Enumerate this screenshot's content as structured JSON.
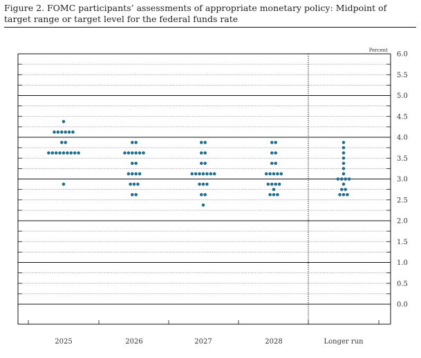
{
  "figure": {
    "title": "Figure 2. FOMC participants’ assessments of appropriate monetary policy: Midpoint of target range or target level for the federal funds rate"
  },
  "chart_data": {
    "type": "scatter",
    "title": "Figure 2. FOMC participants’ assessments of appropriate monetary policy: Midpoint of target range or target level for the federal funds rate",
    "ylabel": "Percent",
    "ylim": [
      0,
      6
    ],
    "yticks": [
      "6.0",
      "5.5",
      "5.0",
      "4.5",
      "4.0",
      "3.5",
      "3.0",
      "2.5",
      "2.0",
      "1.5",
      "1.0",
      "0.5",
      "0.0"
    ],
    "categories": [
      "2025",
      "2026",
      "2027",
      "2028",
      "Longer run"
    ],
    "dots": [
      [
        {
          "rate": 4.375,
          "count": 1
        },
        {
          "rate": 4.125,
          "count": 6
        },
        {
          "rate": 3.875,
          "count": 2
        },
        {
          "rate": 3.625,
          "count": 9
        },
        {
          "rate": 2.875,
          "count": 1
        }
      ],
      [
        {
          "rate": 3.875,
          "count": 2
        },
        {
          "rate": 3.625,
          "count": 6
        },
        {
          "rate": 3.375,
          "count": 2
        },
        {
          "rate": 3.125,
          "count": 4
        },
        {
          "rate": 2.875,
          "count": 3
        },
        {
          "rate": 2.625,
          "count": 2
        }
      ],
      [
        {
          "rate": 3.875,
          "count": 2
        },
        {
          "rate": 3.625,
          "count": 2
        },
        {
          "rate": 3.375,
          "count": 2
        },
        {
          "rate": 3.125,
          "count": 7
        },
        {
          "rate": 2.875,
          "count": 3
        },
        {
          "rate": 2.625,
          "count": 2
        },
        {
          "rate": 2.375,
          "count": 1
        }
      ],
      [
        {
          "rate": 3.875,
          "count": 2
        },
        {
          "rate": 3.625,
          "count": 2
        },
        {
          "rate": 3.375,
          "count": 2
        },
        {
          "rate": 3.125,
          "count": 5
        },
        {
          "rate": 2.875,
          "count": 4
        },
        {
          "rate": 2.75,
          "count": 1
        },
        {
          "rate": 2.625,
          "count": 3
        }
      ],
      [
        {
          "rate": 3.875,
          "count": 1
        },
        {
          "rate": 3.75,
          "count": 1
        },
        {
          "rate": 3.625,
          "count": 1
        },
        {
          "rate": 3.5,
          "count": 1
        },
        {
          "rate": 3.375,
          "count": 1
        },
        {
          "rate": 3.25,
          "count": 1
        },
        {
          "rate": 3.125,
          "count": 1
        },
        {
          "rate": 3.0,
          "count": 4
        },
        {
          "rate": 2.875,
          "count": 1
        },
        {
          "rate": 2.75,
          "count": 2
        },
        {
          "rate": 2.625,
          "count": 3
        }
      ]
    ],
    "grid": true,
    "dot_color": "#1f6e8c"
  }
}
